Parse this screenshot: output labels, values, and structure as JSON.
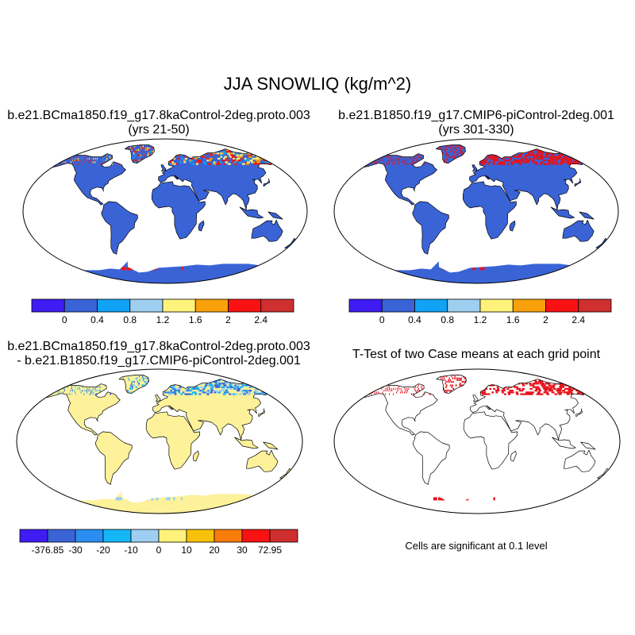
{
  "title": "JJA SNOWLIQ (kg/m^2)",
  "panels": {
    "top_left": {
      "title_line1": "b.e21.BCma1850.f19_g17.8kaControl-2deg.proto.003",
      "title_line2": "(yrs 21-50)"
    },
    "top_right": {
      "title_line1": "b.e21.B1850.f19_g17.CMIP6-piControl-2deg.001",
      "title_line2": "(yrs 301-330)"
    },
    "bottom_left": {
      "title_line1": "b.e21.BCma1850.f19_g17.8kaControl-2deg.proto.003",
      "title_line2": "- b.e21.B1850.f19_g17.CMIP6-piControl-2deg.001"
    },
    "bottom_right": {
      "title": "T-Test of two Case means at each grid point",
      "note": "Cells are significant at 0.1 level"
    }
  },
  "colorbars": {
    "absolute": {
      "colors": [
        "#3f1cf4",
        "#3a63d6",
        "#0fa2f5",
        "#9ecff0",
        "#fef27a",
        "#f8a10b",
        "#fa1212",
        "#d02f2f"
      ],
      "tick_labels": [
        "0",
        "0.4",
        "0.8",
        "1.2",
        "1.6",
        "2",
        "2.4"
      ]
    },
    "difference": {
      "colors": [
        "#3f1cf4",
        "#3a63d6",
        "#2a8ef0",
        "#15b6f5",
        "#9ecff0",
        "#fef27a",
        "#f8c20b",
        "#f87c0a",
        "#fa1212",
        "#d02f2f"
      ],
      "tick_labels": [
        "-376.85",
        "-30",
        "-20",
        "-10",
        "0",
        "10",
        "20",
        "30",
        "72.95"
      ]
    }
  },
  "map_colors": {
    "ocean": "#ffffff",
    "land_absolute": "#3a63d6",
    "land_difference": "#fdf29a",
    "significant": "#e8121a",
    "coast": "#000000"
  }
}
